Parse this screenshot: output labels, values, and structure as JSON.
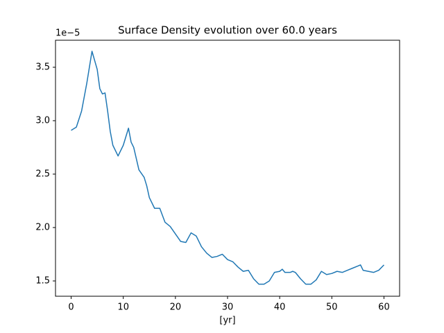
{
  "chart_data": {
    "type": "line",
    "title": "Surface Density evolution over 60.0 years",
    "x_label": "[yr]",
    "y_offset_label": "1e−5",
    "xlim": [
      -3,
      63
    ],
    "ylim": [
      1.357,
      3.753
    ],
    "xticks": [
      0,
      10,
      20,
      30,
      40,
      50,
      60
    ],
    "yticks": [
      1.5,
      {
        "value": 2,
        "label": "2.0"
      },
      2.5,
      {
        "value": 3,
        "label": "3.0"
      },
      3.5
    ],
    "series": [
      {
        "color": "#1f77b4",
        "x": [
          0,
          1,
          2,
          3,
          4,
          5,
          5.5,
          6,
          6.5,
          7,
          7.5,
          8,
          9,
          10,
          11,
          11.5,
          12,
          13,
          14,
          14.5,
          15,
          16,
          17,
          18,
          19,
          20,
          21,
          22,
          23,
          24,
          25,
          26,
          27,
          28,
          29,
          30,
          31,
          32,
          33,
          34,
          35,
          36,
          37,
          38,
          39,
          40,
          40.5,
          41,
          42,
          42.5,
          43,
          44,
          45,
          46,
          47,
          48,
          49,
          50,
          51,
          52,
          53,
          54,
          55,
          55.5,
          56,
          57,
          58,
          59,
          60
        ],
        "values": [
          2.91,
          2.94,
          3.09,
          3.35,
          3.65,
          3.48,
          3.3,
          3.25,
          3.26,
          3.09,
          2.9,
          2.77,
          2.67,
          2.77,
          2.93,
          2.8,
          2.75,
          2.54,
          2.47,
          2.39,
          2.28,
          2.18,
          2.18,
          2.05,
          2.01,
          1.94,
          1.87,
          1.86,
          1.95,
          1.92,
          1.82,
          1.76,
          1.72,
          1.73,
          1.75,
          1.7,
          1.68,
          1.63,
          1.59,
          1.6,
          1.52,
          1.47,
          1.47,
          1.5,
          1.58,
          1.59,
          1.61,
          1.58,
          1.58,
          1.59,
          1.58,
          1.52,
          1.47,
          1.47,
          1.51,
          1.59,
          1.56,
          1.57,
          1.59,
          1.58,
          1.6,
          1.62,
          1.64,
          1.65,
          1.6,
          1.59,
          1.58,
          1.6,
          1.65
        ]
      }
    ]
  }
}
